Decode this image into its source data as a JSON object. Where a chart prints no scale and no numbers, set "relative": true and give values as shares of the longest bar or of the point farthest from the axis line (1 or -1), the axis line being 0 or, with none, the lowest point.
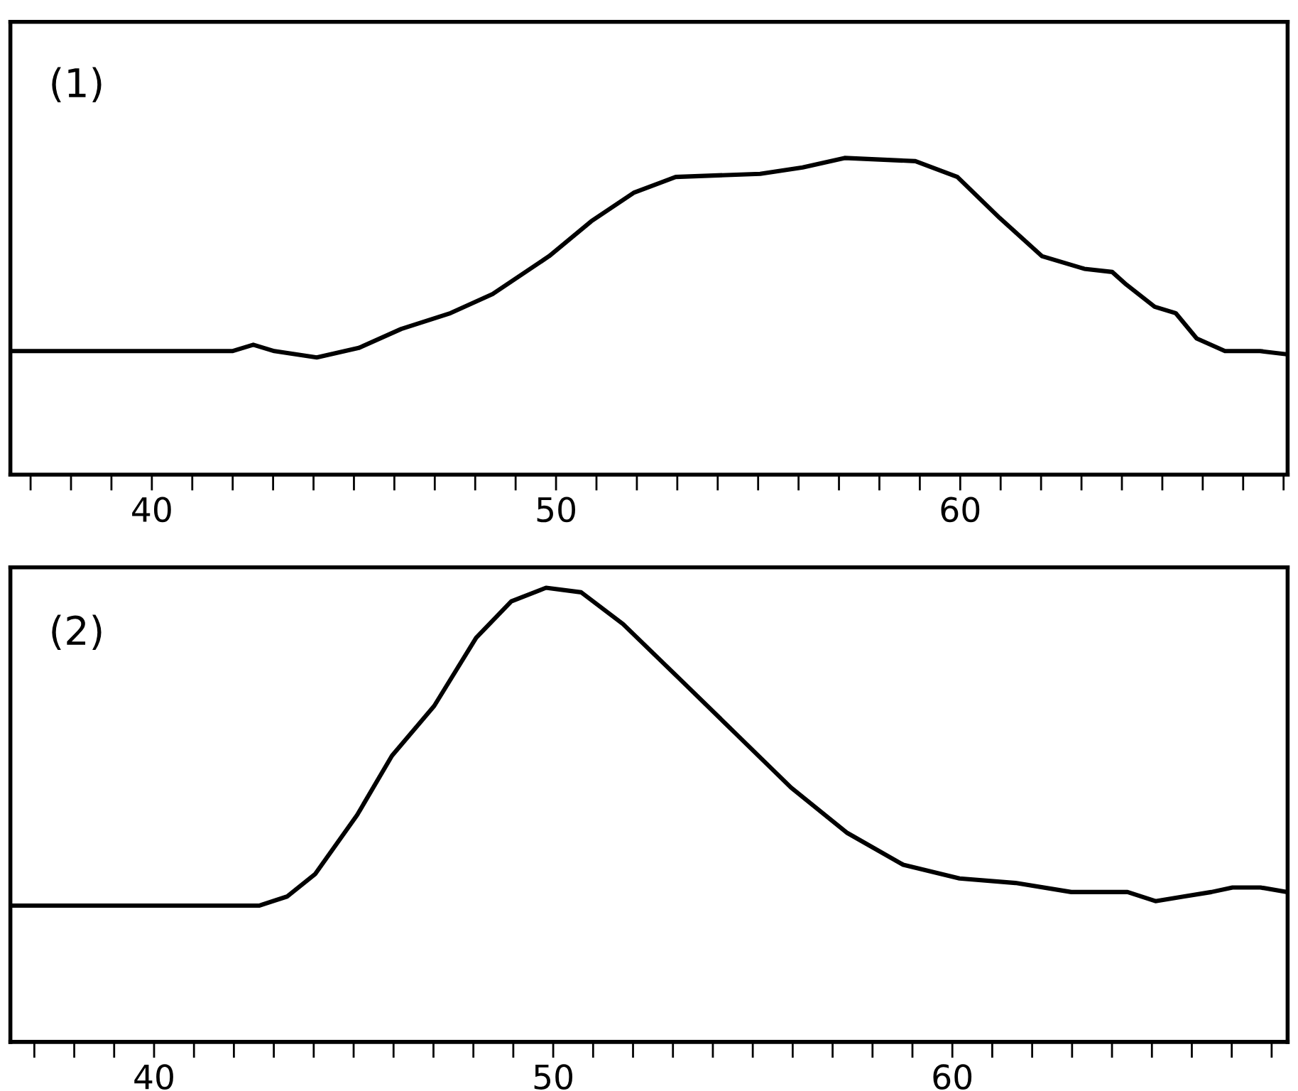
{
  "chart_data": [
    {
      "type": "line",
      "title": "(1)",
      "relative": true,
      "color": "#000000",
      "x": [
        36.52,
        41.99,
        42.51,
        43.03,
        44.08,
        45.12,
        46.17,
        47.39,
        48.43,
        49.83,
        50.87,
        51.92,
        52.96,
        55.05,
        56.1,
        57.14,
        58.89,
        59.93,
        60.98,
        62.02,
        63.07,
        63.76,
        64.11,
        64.81,
        65.33,
        65.85,
        66.55,
        67.42,
        68.08
      ],
      "values": [
        0.39,
        0.39,
        0.41,
        0.39,
        0.37,
        0.4,
        0.46,
        0.51,
        0.57,
        0.69,
        0.8,
        0.89,
        0.94,
        0.95,
        0.97,
        1,
        0.99,
        0.94,
        0.81,
        0.69,
        0.65,
        0.64,
        0.6,
        0.53,
        0.51,
        0.43,
        0.39,
        0.39,
        0.38
      ],
      "xlim": [
        36.5,
        68.1
      ],
      "xticks": [
        {
          "value": 37,
          "label": null
        },
        {
          "value": 38,
          "label": null
        },
        {
          "value": 39,
          "label": null
        },
        40,
        {
          "value": 41,
          "label": null
        },
        {
          "value": 42,
          "label": null
        },
        {
          "value": 43,
          "label": null
        },
        {
          "value": 44,
          "label": null
        },
        {
          "value": 45,
          "label": null
        },
        {
          "value": 46,
          "label": null
        },
        {
          "value": 47,
          "label": null
        },
        {
          "value": 48,
          "label": null
        },
        {
          "value": 49,
          "label": null
        },
        50,
        {
          "value": 51,
          "label": null
        },
        {
          "value": 52,
          "label": null
        },
        {
          "value": 53,
          "label": null
        },
        {
          "value": 54,
          "label": null
        },
        {
          "value": 55,
          "label": null
        },
        {
          "value": 56,
          "label": null
        },
        {
          "value": 57,
          "label": null
        },
        {
          "value": 58,
          "label": null
        },
        {
          "value": 59,
          "label": null
        },
        60,
        {
          "value": 61,
          "label": null
        },
        {
          "value": 62,
          "label": null
        },
        {
          "value": 63,
          "label": null
        },
        {
          "value": 64,
          "label": null
        },
        {
          "value": 65,
          "label": null
        },
        {
          "value": 66,
          "label": null
        },
        {
          "value": 67,
          "label": null
        },
        {
          "value": 68,
          "label": null
        }
      ]
    },
    {
      "type": "line",
      "title": "(2)",
      "relative": true,
      "color": "#000000",
      "x": [
        36.49,
        42.63,
        43.33,
        44.04,
        45.09,
        45.96,
        47.02,
        48.07,
        48.95,
        49.82,
        50.7,
        51.75,
        53.16,
        54.56,
        55.96,
        57.37,
        58.77,
        60.18,
        61.58,
        62.98,
        64.39,
        65.09,
        65.79,
        66.49,
        67.02,
        67.72,
        68.39
      ],
      "values": [
        0.3,
        0.3,
        0.32,
        0.37,
        0.5,
        0.63,
        0.74,
        0.89,
        0.97,
        1,
        0.99,
        0.92,
        0.8,
        0.68,
        0.56,
        0.46,
        0.39,
        0.36,
        0.35,
        0.33,
        0.33,
        0.31,
        0.32,
        0.33,
        0.34,
        0.34,
        0.33
      ],
      "xlim": [
        36.4,
        68.4
      ],
      "xticks": [
        {
          "value": 37,
          "label": null
        },
        {
          "value": 38,
          "label": null
        },
        {
          "value": 39,
          "label": null
        },
        40,
        {
          "value": 41,
          "label": null
        },
        {
          "value": 42,
          "label": null
        },
        {
          "value": 43,
          "label": null
        },
        {
          "value": 44,
          "label": null
        },
        {
          "value": 45,
          "label": null
        },
        {
          "value": 46,
          "label": null
        },
        {
          "value": 47,
          "label": null
        },
        {
          "value": 48,
          "label": null
        },
        {
          "value": 49,
          "label": null
        },
        50,
        {
          "value": 51,
          "label": null
        },
        {
          "value": 52,
          "label": null
        },
        {
          "value": 53,
          "label": null
        },
        {
          "value": 54,
          "label": null
        },
        {
          "value": 55,
          "label": null
        },
        {
          "value": 56,
          "label": null
        },
        {
          "value": 57,
          "label": null
        },
        {
          "value": 58,
          "label": null
        },
        {
          "value": 59,
          "label": null
        },
        60,
        {
          "value": 61,
          "label": null
        },
        {
          "value": 62,
          "label": null
        },
        {
          "value": 63,
          "label": null
        },
        {
          "value": 64,
          "label": null
        },
        {
          "value": 65,
          "label": null
        },
        {
          "value": 66,
          "label": null
        },
        {
          "value": 67,
          "label": null
        },
        {
          "value": 68,
          "label": null
        }
      ]
    }
  ]
}
